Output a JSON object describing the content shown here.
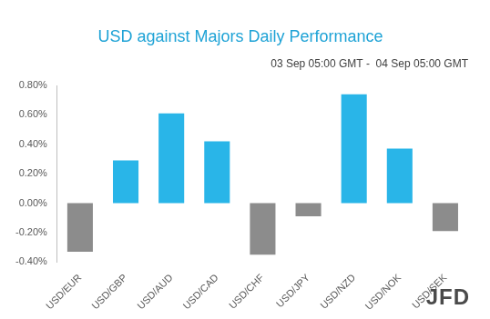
{
  "chart_data": {
    "type": "bar",
    "title": "USD against Majors Daily Performance",
    "subtitle": "03 Sep 05:00 GMT -  04 Sep 05:00 GMT",
    "logo": "JFD",
    "categories": [
      "USD/EUR",
      "USD/GBP",
      "USD/AUD",
      "USD/CAD",
      "USD/CHF",
      "USD/JPY",
      "USD/NZD",
      "USD/NOK",
      "USD/SEK"
    ],
    "values": [
      -0.33,
      0.29,
      0.61,
      0.42,
      -0.35,
      -0.09,
      0.74,
      0.37,
      -0.19
    ],
    "colors": [
      "#8c8c8c",
      "#29b5e8",
      "#29b5e8",
      "#29b5e8",
      "#8c8c8c",
      "#8c8c8c",
      "#29b5e8",
      "#29b5e8",
      "#8c8c8c"
    ],
    "ylim": [
      -0.4,
      0.8
    ],
    "yticks": [
      {
        "value": -0.4,
        "label": "-0.40%"
      },
      {
        "value": -0.2,
        "label": "-0.20%"
      },
      {
        "value": 0,
        "label": "0.00%"
      },
      {
        "value": 0.2,
        "label": "0.20%"
      },
      {
        "value": 0.4,
        "label": "0.40%"
      },
      {
        "value": 0.6,
        "label": "0.60%"
      },
      {
        "value": 0.8,
        "label": "0.80%"
      }
    ],
    "grid": false
  }
}
